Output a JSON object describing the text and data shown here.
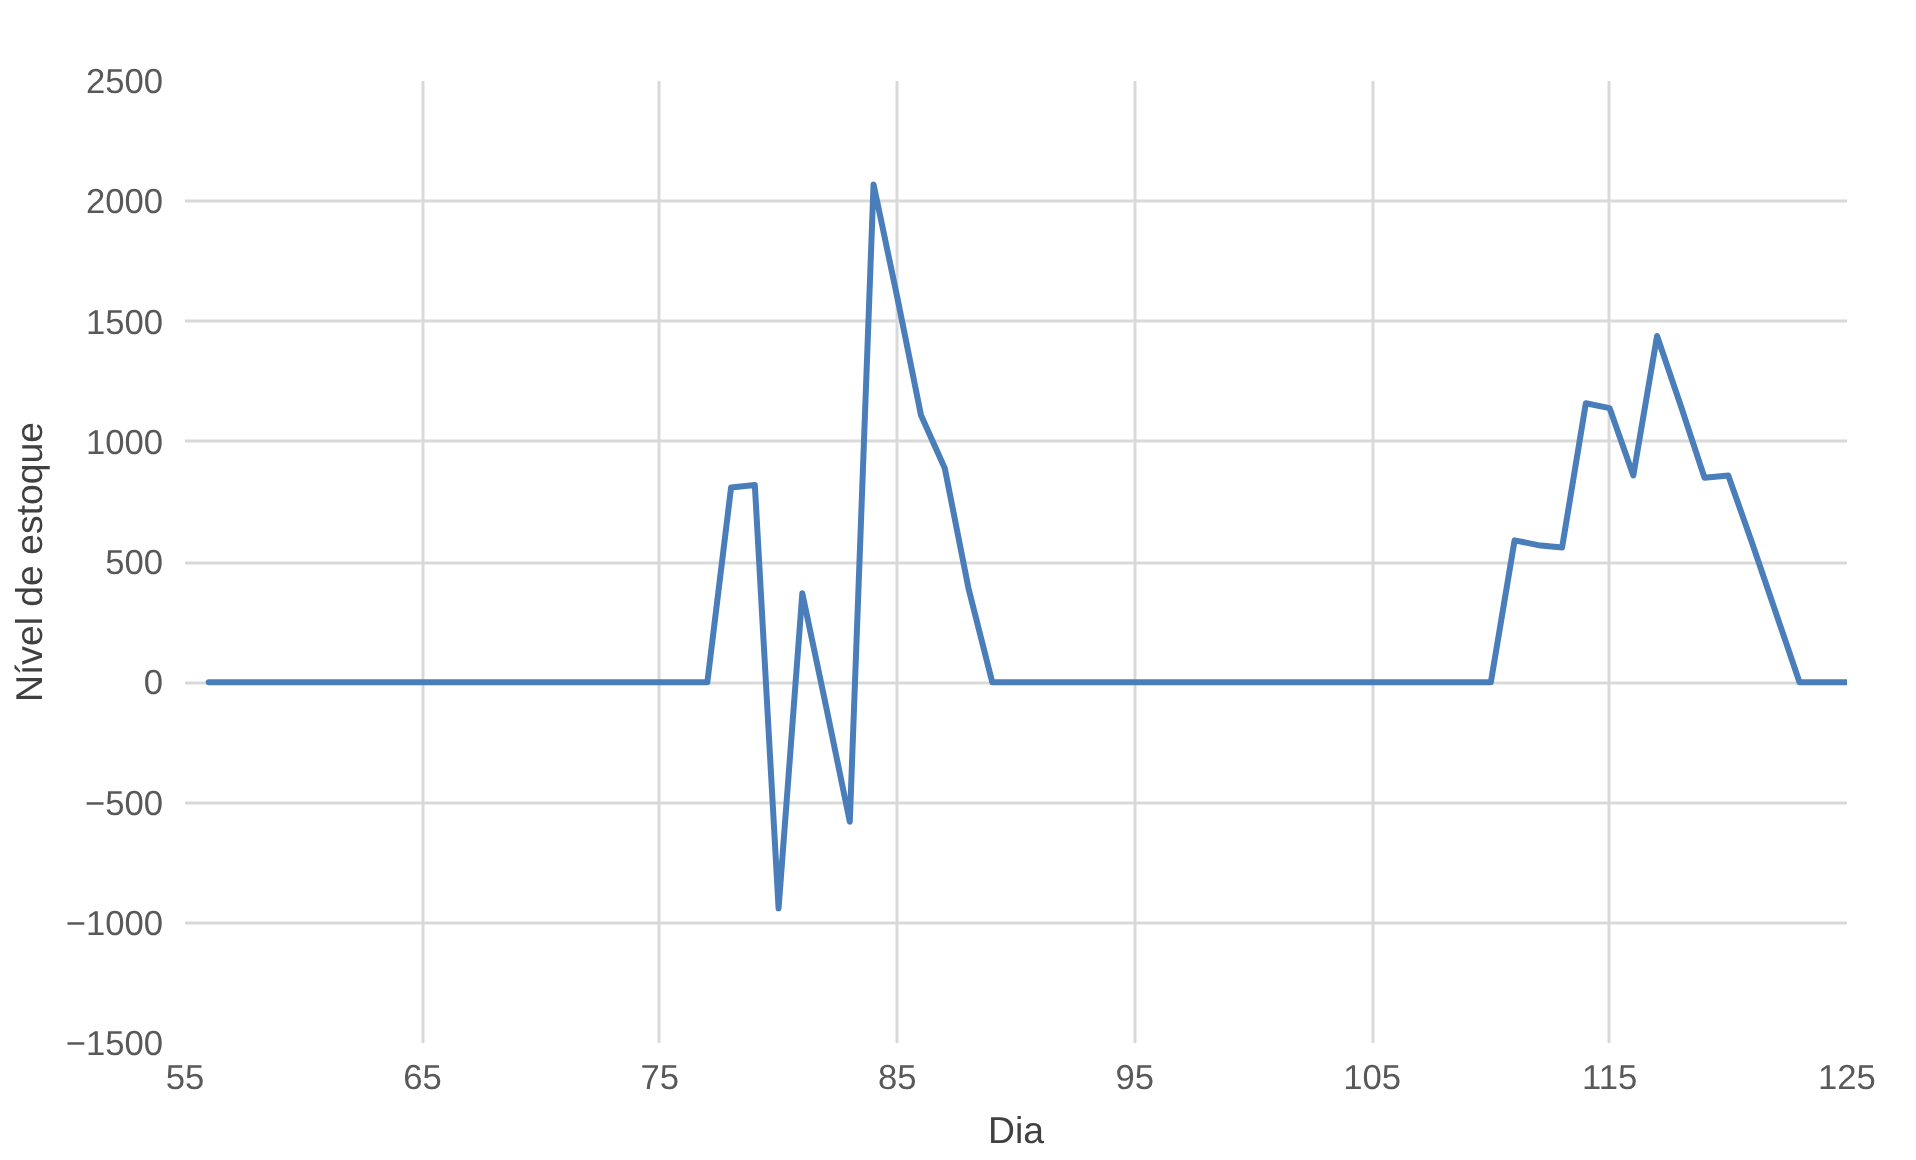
{
  "chart_data": {
    "type": "line",
    "xlabel": "Dia",
    "ylabel": "Nível de estoque",
    "x": [
      56,
      57,
      58,
      59,
      60,
      61,
      62,
      63,
      64,
      65,
      66,
      67,
      68,
      69,
      70,
      71,
      72,
      73,
      74,
      75,
      76,
      77,
      78,
      79,
      80,
      81,
      82,
      83,
      84,
      85,
      86,
      87,
      88,
      89,
      90,
      91,
      92,
      93,
      94,
      95,
      96,
      97,
      98,
      99,
      100,
      101,
      102,
      103,
      104,
      105,
      106,
      107,
      108,
      109,
      110,
      111,
      112,
      113,
      114,
      115,
      116,
      117,
      118,
      119,
      120,
      121,
      122,
      123,
      124,
      125
    ],
    "series": [
      {
        "color": "#4a7ebb",
        "values": [
          0,
          0,
          0,
          0,
          0,
          0,
          0,
          0,
          0,
          0,
          0,
          0,
          0,
          0,
          0,
          0,
          0,
          0,
          0,
          0,
          0,
          0,
          810,
          820,
          -940,
          370,
          -100,
          -580,
          2070,
          1600,
          1110,
          890,
          390,
          0,
          0,
          0,
          0,
          0,
          0,
          0,
          0,
          0,
          0,
          0,
          0,
          0,
          0,
          0,
          0,
          0,
          0,
          0,
          0,
          0,
          0,
          590,
          570,
          560,
          1160,
          1140,
          860,
          1440,
          1150,
          850,
          860,
          580,
          290,
          0,
          0,
          0
        ]
      }
    ],
    "xlim": [
      55,
      125
    ],
    "ylim": [
      -1500,
      2500
    ],
    "xticks": [
      55,
      65,
      75,
      85,
      95,
      105,
      115,
      125
    ],
    "yticks": [
      -1500,
      -1000,
      -500,
      0,
      500,
      1000,
      1500,
      2000,
      2500
    ],
    "grid": true,
    "marker": "none",
    "line_style": "solid"
  }
}
